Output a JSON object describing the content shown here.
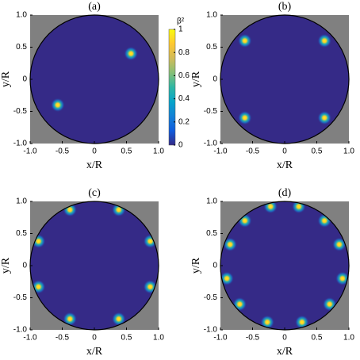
{
  "chart_data": [
    {
      "type": "scatter",
      "title": "(a)",
      "xlabel": "x/R",
      "ylabel": "y/R",
      "x": [
        0.57,
        -0.57
      ],
      "y": [
        0.4,
        -0.4
      ],
      "xlim": [
        -1,
        1
      ],
      "ylim": [
        -1,
        1
      ],
      "xticks": [
        {
          "value": -1,
          "label": "-1.0"
        },
        -0.5,
        0,
        0.5,
        {
          "value": 1,
          "label": "1.0"
        }
      ],
      "yticks": [
        {
          "value": -1,
          "label": "-1.0"
        },
        -0.5,
        0,
        0.5,
        {
          "value": 1,
          "label": "1.0"
        }
      ],
      "color": "#352a87",
      "outside_color": "#808080",
      "colorbar": {
        "label": "β²",
        "lim": [
          0,
          1
        ],
        "ticks": [
          0,
          0.2,
          0.4,
          0.6,
          0.8,
          1
        ],
        "colors": [
          "#352a87",
          "#0f5cdd",
          "#1481d6",
          "#06a4ca",
          "#2eb7a4",
          "#87bf77",
          "#d1bb59",
          "#fec832",
          "#f9fb0e"
        ]
      }
    },
    {
      "type": "scatter",
      "title": "(b)",
      "xlabel": "x/R",
      "ylabel": "y/R",
      "x": [
        -0.62,
        0.62,
        -0.62,
        0.62
      ],
      "y": [
        0.6,
        0.6,
        -0.6,
        -0.6
      ],
      "xlim": [
        -1,
        1
      ],
      "ylim": [
        -1,
        1
      ],
      "xticks": [
        {
          "value": -1,
          "label": "-1.0"
        },
        -0.5,
        0,
        0.5,
        {
          "value": 1,
          "label": "1.0"
        }
      ],
      "yticks": [
        {
          "value": -1,
          "label": "-1.0"
        },
        -0.5,
        0,
        0.5,
        {
          "value": 1,
          "label": "1.0"
        }
      ],
      "color": "#352a87",
      "outside_color": "#808080"
    },
    {
      "type": "scatter",
      "title": "(c)",
      "xlabel": "x/R",
      "ylabel": "y/R",
      "x": [
        -0.38,
        0.38,
        -0.87,
        0.87,
        -0.87,
        0.87,
        -0.38,
        0.38
      ],
      "y": [
        0.87,
        0.87,
        0.38,
        0.38,
        -0.33,
        -0.33,
        -0.83,
        -0.83
      ],
      "xlim": [
        -1,
        1
      ],
      "ylim": [
        -1,
        1
      ],
      "xticks": [
        {
          "value": -1,
          "label": "-1.0"
        },
        -0.5,
        0,
        0.5,
        {
          "value": 1,
          "label": "1.0"
        }
      ],
      "yticks": [
        {
          "value": -1,
          "label": "-1.0"
        },
        -0.5,
        0,
        0.5,
        {
          "value": 1,
          "label": "1.0"
        }
      ],
      "color": "#352a87",
      "outside_color": "#808080"
    },
    {
      "type": "scatter",
      "title": "(d)",
      "xlabel": "x/R",
      "ylabel": "y/R",
      "x": [
        -0.22,
        0.22,
        -0.62,
        0.62,
        -0.85,
        0.85,
        -0.9,
        0.9,
        -0.7,
        0.7,
        -0.27,
        0.27
      ],
      "y": [
        0.92,
        0.92,
        0.7,
        0.7,
        0.33,
        0.33,
        -0.2,
        -0.2,
        -0.6,
        -0.6,
        -0.88,
        -0.88
      ],
      "xlim": [
        -1,
        1
      ],
      "ylim": [
        -1,
        1
      ],
      "xticks": [
        {
          "value": -1,
          "label": "-1.0"
        },
        -0.5,
        0,
        0.5,
        {
          "value": 1,
          "label": "1.0"
        }
      ],
      "yticks": [
        {
          "value": -1,
          "label": "-1.0"
        },
        -0.5,
        0,
        0.5,
        {
          "value": 1,
          "label": "1.0"
        }
      ],
      "color": "#352a87",
      "outside_color": "#808080"
    }
  ]
}
